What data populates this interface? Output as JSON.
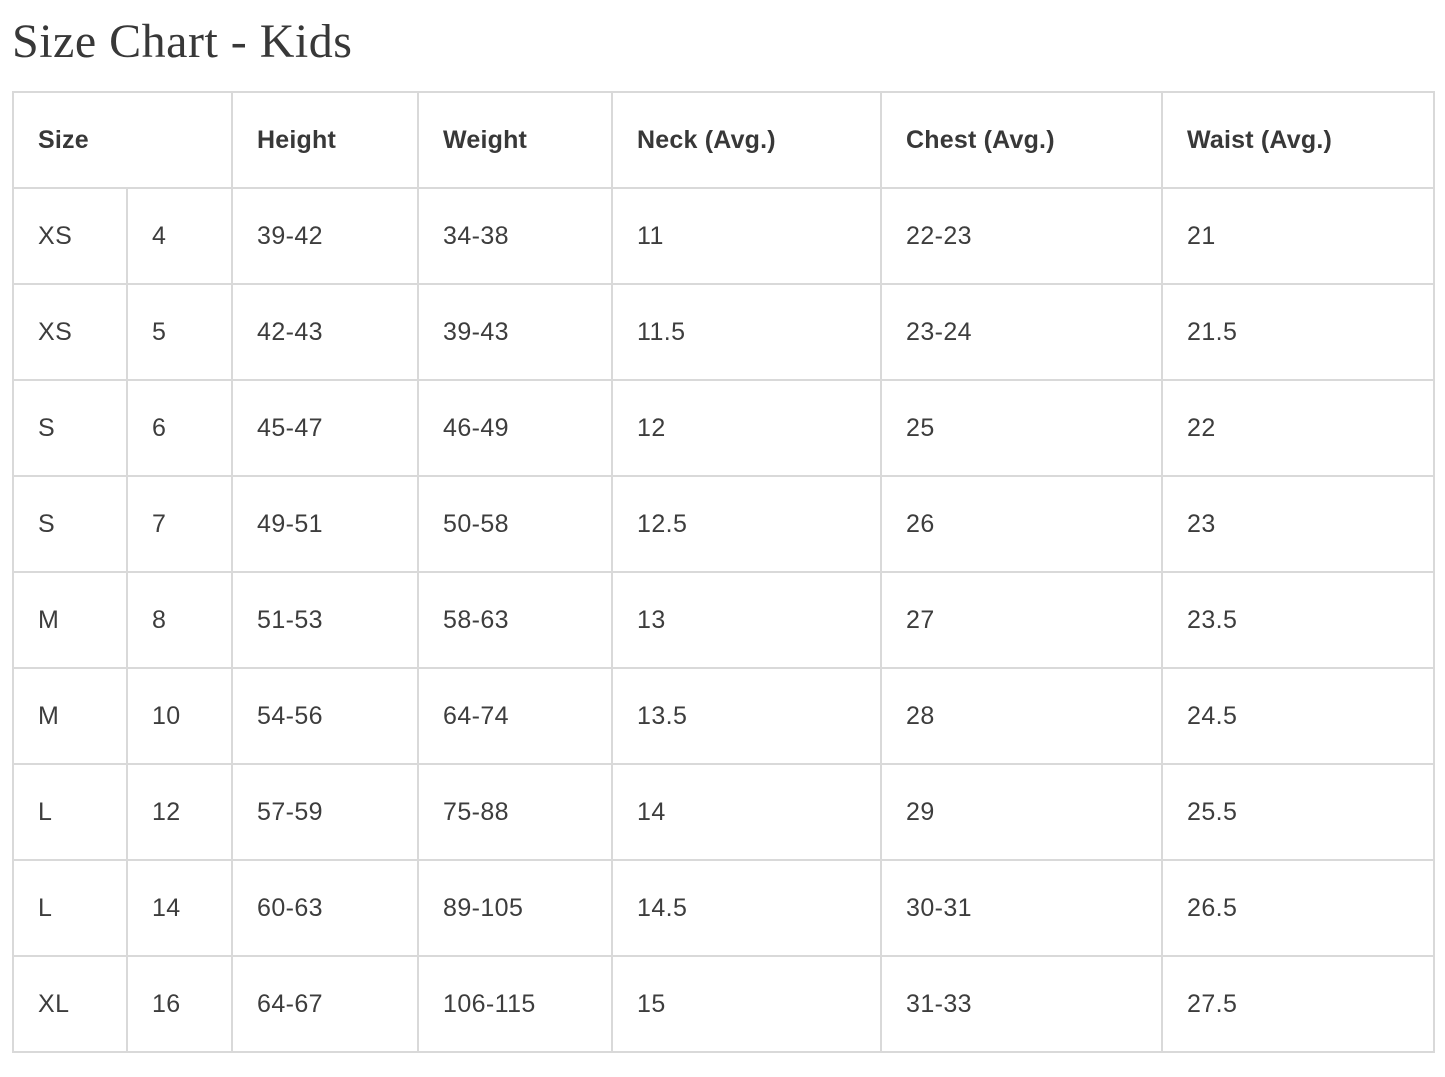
{
  "page": {
    "title": "Size Chart - Kids"
  },
  "table": {
    "columns": [
      "Size",
      "Height",
      "Weight",
      "Neck (Avg.)",
      "Chest (Avg.)",
      "Waist (Avg.)"
    ],
    "row_fields": [
      "size",
      "size_number",
      "height",
      "weight",
      "neck",
      "chest",
      "waist"
    ],
    "rows": [
      {
        "size": "XS",
        "size_number": "4",
        "height": "39-42",
        "weight": "34-38",
        "neck": "11",
        "chest": "22-23",
        "waist": "21"
      },
      {
        "size": "XS",
        "size_number": "5",
        "height": "42-43",
        "weight": "39-43",
        "neck": "11.5",
        "chest": "23-24",
        "waist": "21.5"
      },
      {
        "size": "S",
        "size_number": "6",
        "height": "45-47",
        "weight": "46-49",
        "neck": "12",
        "chest": "25",
        "waist": "22"
      },
      {
        "size": "S",
        "size_number": "7",
        "height": "49-51",
        "weight": "50-58",
        "neck": "12.5",
        "chest": "26",
        "waist": "23"
      },
      {
        "size": "M",
        "size_number": "8",
        "height": "51-53",
        "weight": "58-63",
        "neck": "13",
        "chest": "27",
        "waist": "23.5"
      },
      {
        "size": "M",
        "size_number": "10",
        "height": "54-56",
        "weight": "64-74",
        "neck": "13.5",
        "chest": "28",
        "waist": "24.5"
      },
      {
        "size": "L",
        "size_number": "12",
        "height": "57-59",
        "weight": "75-88",
        "neck": "14",
        "chest": "29",
        "waist": "25.5"
      },
      {
        "size": "L",
        "size_number": "14",
        "height": "60-63",
        "weight": "89-105",
        "neck": "14.5",
        "chest": "30-31",
        "waist": "26.5"
      },
      {
        "size": "XL",
        "size_number": "16",
        "height": "64-67",
        "weight": "106-115",
        "neck": "15",
        "chest": "31-33",
        "waist": "27.5"
      }
    ],
    "colors": {
      "border": "#d9d9d9",
      "header_text": "#383838",
      "cell_text": "#3d3d3d",
      "background": "#ffffff"
    }
  }
}
